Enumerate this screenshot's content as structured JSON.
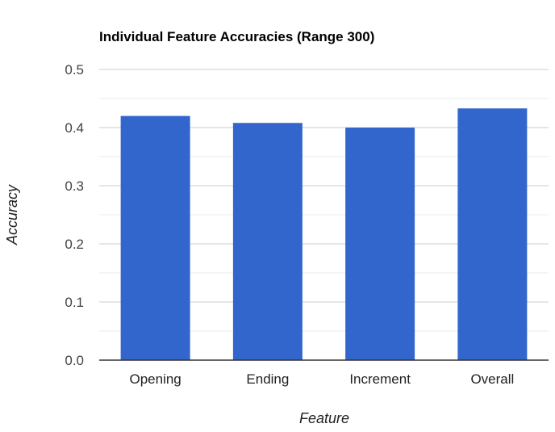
{
  "chart_data": {
    "type": "bar",
    "title": "Individual Feature Accuracies (Range 300)",
    "xlabel": "Feature",
    "ylabel": "Accuracy",
    "categories": [
      "Opening",
      "Ending",
      "Increment",
      "Overall"
    ],
    "values": [
      0.42,
      0.408,
      0.4,
      0.433
    ],
    "ylim": [
      0,
      0.5
    ],
    "yticks": [
      "0.0",
      "0.1",
      "0.2",
      "0.3",
      "0.4",
      "0.5"
    ],
    "grid": true,
    "legend": "none",
    "colors": {
      "bar": "#3366cc",
      "major_grid": "#cccccc",
      "minor_grid": "#ebebeb",
      "axis": "#333333",
      "tick_text": "#444444",
      "title_text": "#000000",
      "label_text": "#222222"
    }
  }
}
